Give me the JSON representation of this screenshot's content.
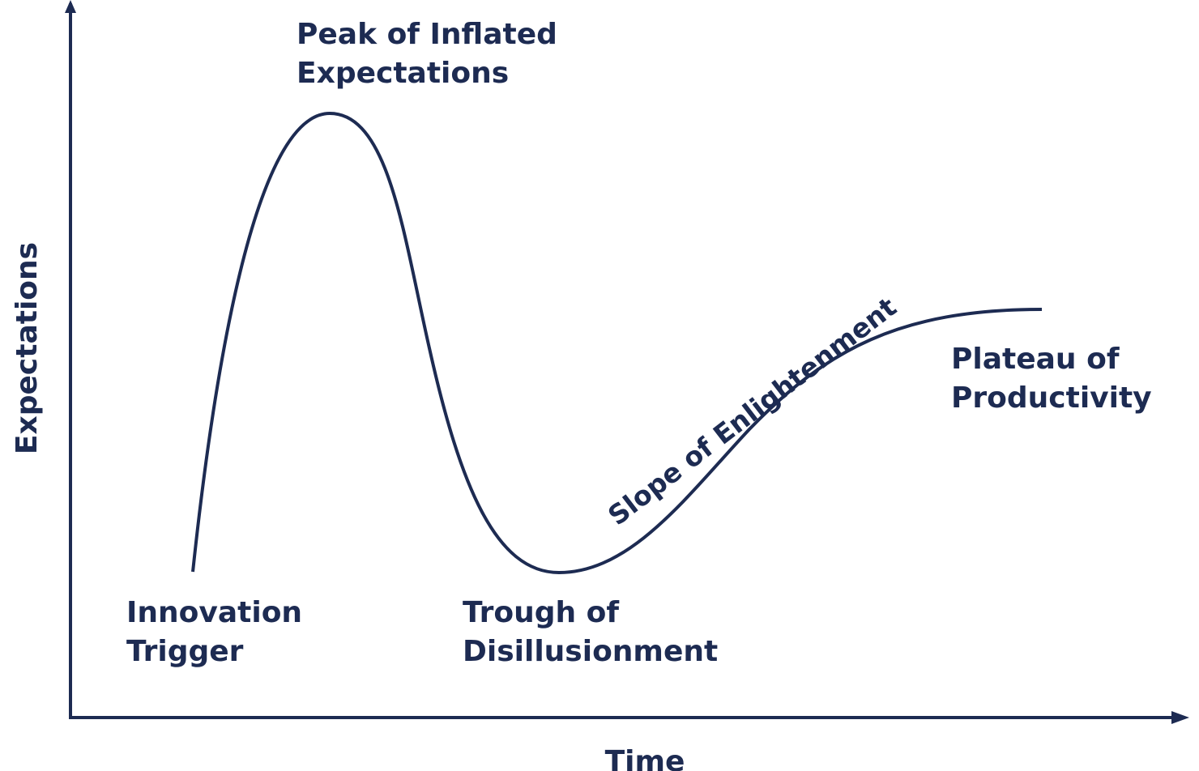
{
  "axes": {
    "y_label": "Expectations",
    "x_label": "Time"
  },
  "phases": [
    {
      "lines": [
        "Innovation",
        "Trigger"
      ]
    },
    {
      "lines": [
        "Peak of Inflated",
        "Expectations"
      ]
    },
    {
      "lines": [
        "Trough of",
        "Disillusionment"
      ]
    },
    {
      "lines": [
        "Slope of Enlightenment"
      ]
    },
    {
      "lines": [
        "Plateau of",
        "Productivity"
      ]
    }
  ]
}
